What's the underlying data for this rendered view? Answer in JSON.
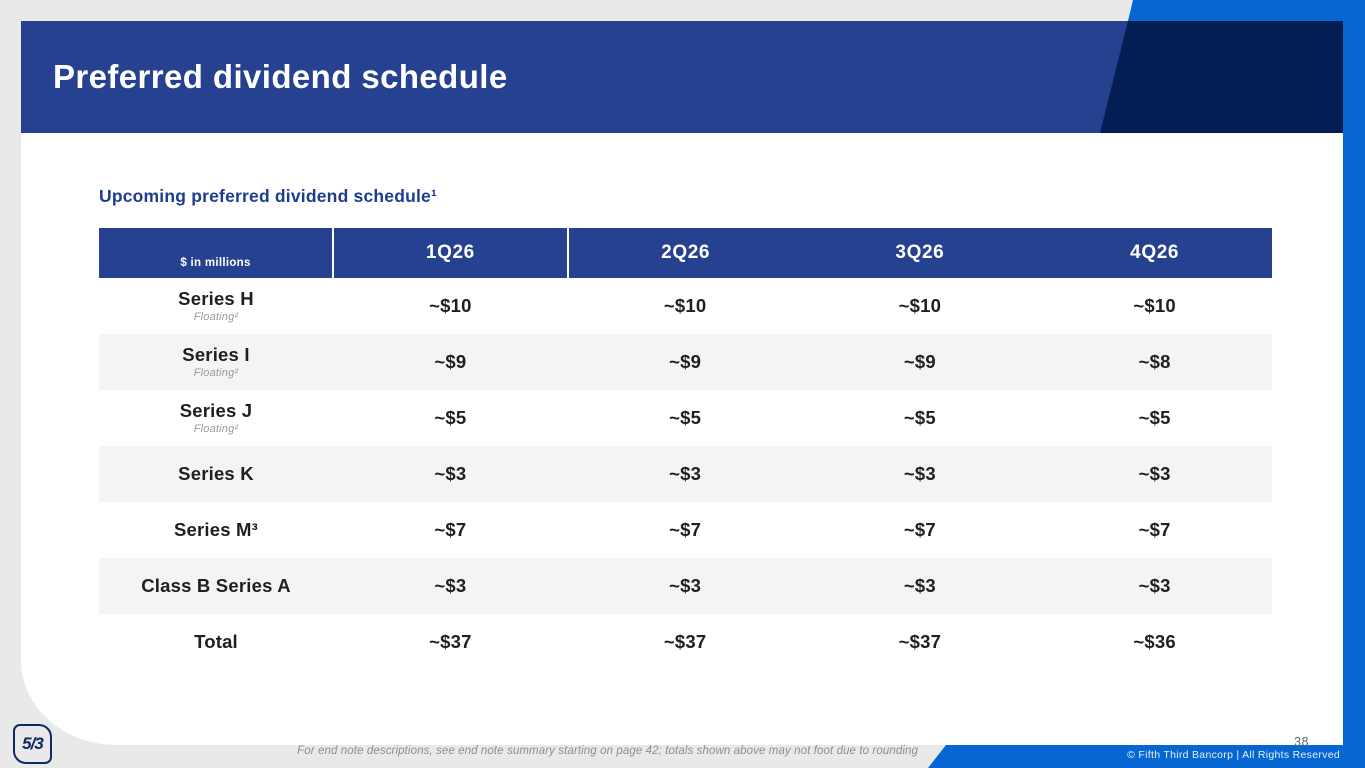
{
  "slide": {
    "title": "Preferred dividend schedule",
    "page_number": "38",
    "footnote": "For end note descriptions, see end note summary starting on page 42; totals shown above may not foot due to rounding",
    "copyright": "© Fifth Third Bancorp | All Rights Reserved",
    "logo_glyph": "5/3"
  },
  "section": {
    "heading": "Upcoming preferred dividend schedule¹"
  },
  "chart_data": {
    "type": "table",
    "title": "Upcoming preferred dividend schedule",
    "unit_label": "$ in millions",
    "columns": [
      "1Q26",
      "2Q26",
      "3Q26",
      "4Q26"
    ],
    "rows": [
      {
        "label": "Series H",
        "sublabel": "Floating²",
        "values": [
          "~$10",
          "~$10",
          "~$10",
          "~$10"
        ]
      },
      {
        "label": "Series I",
        "sublabel": "Floating²",
        "values": [
          "~$9",
          "~$9",
          "~$9",
          "~$8"
        ]
      },
      {
        "label": "Series J",
        "sublabel": "Floating²",
        "values": [
          "~$5",
          "~$5",
          "~$5",
          "~$5"
        ]
      },
      {
        "label": "Series K",
        "sublabel": "",
        "values": [
          "~$3",
          "~$3",
          "~$3",
          "~$3"
        ]
      },
      {
        "label": "Series M³",
        "sublabel": "",
        "values": [
          "~$7",
          "~$7",
          "~$7",
          "~$7"
        ]
      },
      {
        "label": "Class B Series A",
        "sublabel": "",
        "values": [
          "~$3",
          "~$3",
          "~$3",
          "~$3"
        ]
      },
      {
        "label": "Total",
        "sublabel": "",
        "values": [
          "~$37",
          "~$37",
          "~$37",
          "~$36"
        ]
      }
    ]
  },
  "colors": {
    "banner_blue": "#26418f",
    "dark_navy": "#041d52",
    "accent_bright_blue": "#0667d2",
    "background_gray": "#e9e9e9",
    "alt_row_gray": "#f4f4f4",
    "heading_blue": "#1e3d90",
    "body_text": "#1f1f1f",
    "sublabel_gray": "#9b9b9b",
    "footnote_gray": "#8a8f96"
  }
}
